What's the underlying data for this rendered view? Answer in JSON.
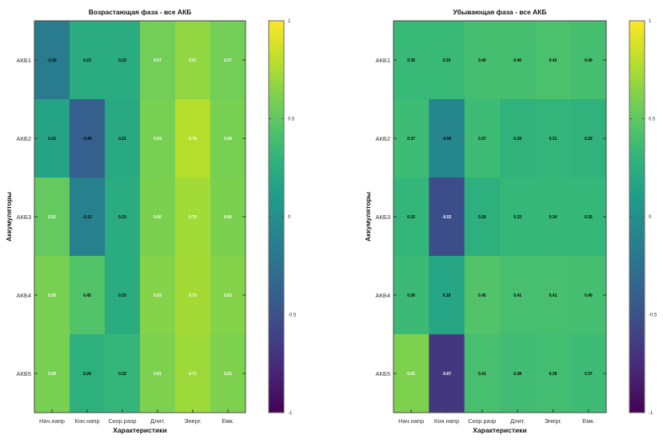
{
  "chart_data": [
    {
      "type": "heatmap",
      "title": "Возрастающая фаза - все АКБ",
      "xlabel": "Характеристики",
      "ylabel": "Аккумуляторы",
      "categories": [
        "Нач.напр",
        "Кон.напр",
        "Скор.разр",
        "Длит.",
        "Энерг.",
        "Емк."
      ],
      "rows": [
        "АКБ1",
        "АКБ2",
        "АКБ3",
        "АКБ4",
        "АКБ5"
      ],
      "values": [
        [
          -0.16,
          0.23,
          0.23,
          0.57,
          0.67,
          0.57
        ],
        [
          0.16,
          -0.4,
          0.21,
          0.59,
          0.78,
          0.59
        ],
        [
          0.52,
          -0.13,
          0.23,
          0.6,
          0.72,
          0.6
        ],
        [
          0.59,
          0.45,
          0.23,
          0.63,
          0.73,
          0.63
        ],
        [
          0.59,
          0.26,
          0.32,
          0.61,
          0.71,
          0.61
        ]
      ],
      "colormap": "viridis",
      "clim": [
        -1,
        1
      ],
      "colorbar_ticks": [
        "1",
        "0.5",
        "0",
        "-0.5",
        "-1"
      ]
    },
    {
      "type": "heatmap",
      "title": "Убывающая фаза - все АКБ",
      "xlabel": "Характеристики",
      "ylabel": "Аккумуляторы",
      "categories": [
        "Нач.напр",
        "Кон.напр",
        "Скор.разр",
        "Длит.",
        "Энерг.",
        "Емк."
      ],
      "rows": [
        "АКБ1",
        "АКБ2",
        "АКБ3",
        "АКБ4",
        "АКБ5"
      ],
      "values": [
        [
          0.35,
          0.35,
          0.4,
          0.4,
          0.42,
          0.4
        ],
        [
          0.37,
          -0.08,
          0.37,
          0.29,
          0.31,
          0.29
        ],
        [
          0.32,
          -0.53,
          0.26,
          0.33,
          0.34,
          0.33
        ],
        [
          0.36,
          0.18,
          0.45,
          0.41,
          0.41,
          0.4
        ],
        [
          0.61,
          -0.67,
          0.41,
          0.38,
          0.39,
          0.37
        ]
      ],
      "colormap": "viridis",
      "clim": [
        -1,
        1
      ],
      "colorbar_ticks": [
        "1",
        "0.5",
        "0",
        "-0.5",
        "-1"
      ]
    }
  ]
}
